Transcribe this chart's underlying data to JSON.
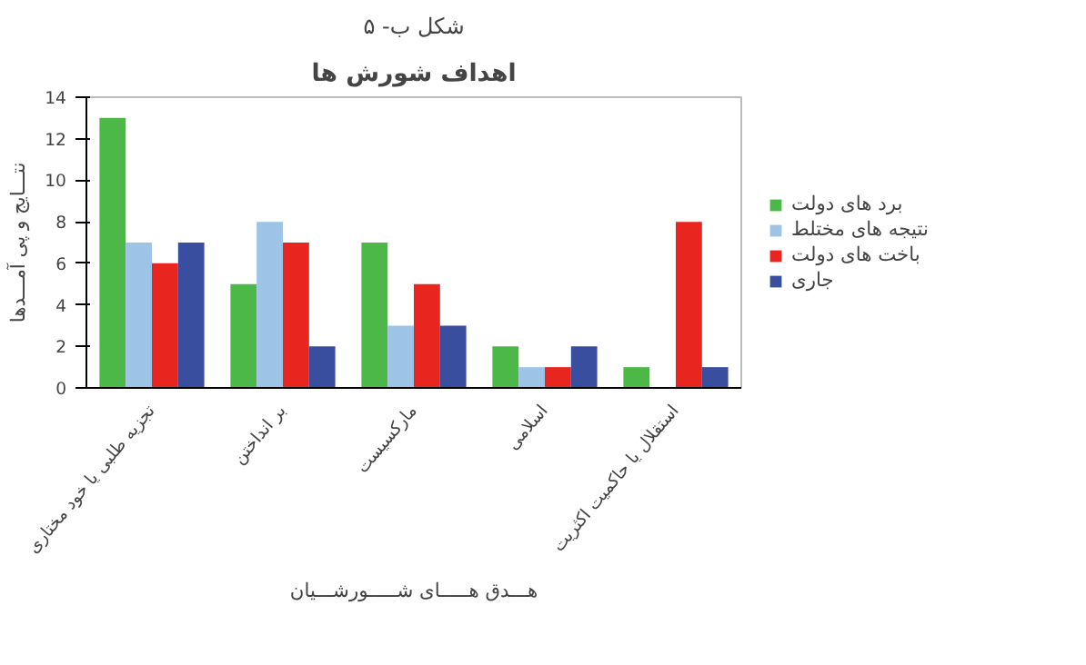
{
  "chart_data": {
    "type": "bar",
    "title": "شکل ب- ۵",
    "subtitle": "اهداف شورش ها",
    "xlabel": "هـــدق هـــــای شـــــورشـــیان",
    "ylabel": "نتـــایج و پی آمـــدها",
    "categories": [
      "تجزیه طلبی یا خود مختاری",
      "بر انداختن",
      "مارکسیست",
      "اسلامی",
      "استقلال یا حاکمیت اکثریت"
    ],
    "series": [
      {
        "name": "برد های دولت",
        "color": "#4cb848",
        "values": [
          13,
          5,
          7,
          2,
          1
        ]
      },
      {
        "name": "نتیجه های مختلط",
        "color": "#9dc3e6",
        "values": [
          7,
          8,
          3,
          1,
          0
        ]
      },
      {
        "name": "باخت های دولت",
        "color": "#e8251f",
        "values": [
          6,
          7,
          5,
          1,
          8
        ]
      },
      {
        "name": "جاری",
        "color": "#3a4ea0",
        "values": [
          7,
          2,
          3,
          2,
          1
        ]
      }
    ],
    "ylim": [
      0,
      14
    ],
    "yticks": [
      0,
      2,
      4,
      6,
      8,
      10,
      12,
      14
    ],
    "grid": false,
    "legend": "right"
  }
}
